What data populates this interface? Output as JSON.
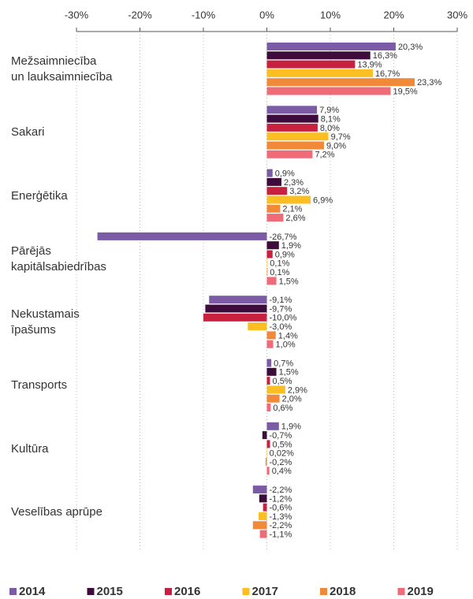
{
  "chart_data": {
    "type": "hbar",
    "categories": [
      "Mežsaimniecība\nun lauksaimniecība",
      "Sakari",
      "Enerģētika",
      "Pārējās\nkapitālsabiedrības",
      "Nekustamais\nīpašums",
      "Transports",
      "Kultūra",
      "Veselības aprūpe"
    ],
    "series": [
      {
        "name": "2014",
        "color": "#7b5aa6",
        "values": [
          20.3,
          7.9,
          0.9,
          -26.7,
          -9.1,
          0.7,
          1.9,
          -2.2
        ],
        "value_labels": [
          "20,3%",
          "7,9%",
          "0,9%",
          "-26,7%",
          "-9,1%",
          "0,7%",
          "1,9%",
          "-2,2%"
        ]
      },
      {
        "name": "2015",
        "color": "#3d0c3a",
        "values": [
          16.3,
          8.1,
          2.3,
          1.9,
          -9.7,
          1.5,
          -0.7,
          -1.2
        ],
        "value_labels": [
          "16,3%",
          "8,1%",
          "2,3%",
          "1,9%",
          "-9,7%",
          "1,5%",
          "-0,7%",
          "-1,2%"
        ]
      },
      {
        "name": "2016",
        "color": "#c8203f",
        "values": [
          13.9,
          8.0,
          3.2,
          0.9,
          -10.0,
          0.5,
          0.5,
          -0.6
        ],
        "value_labels": [
          "13,9%",
          "8,0%",
          "3,2%",
          "0,9%",
          "-10,0%",
          "0,5%",
          "0,5%",
          "-0,6%"
        ]
      },
      {
        "name": "2017",
        "color": "#fbbf24",
        "values": [
          16.7,
          9.7,
          6.9,
          0.1,
          -3.0,
          2.9,
          0.02,
          -1.3
        ],
        "value_labels": [
          "16,7%",
          "9,7%",
          "6,9%",
          "0,1%",
          "-3,0%",
          "2,9%",
          "0,02%",
          "-1,3%"
        ]
      },
      {
        "name": "2018",
        "color": "#f08a3a",
        "values": [
          23.3,
          9.0,
          2.1,
          0.1,
          1.4,
          2.0,
          -0.2,
          -2.2
        ],
        "value_labels": [
          "23,3%",
          "9,0%",
          "2,1%",
          "0,1%",
          "1,4%",
          "2,0%",
          "-0,2%",
          "-2,2%"
        ]
      },
      {
        "name": "2019",
        "color": "#ef6b78",
        "values": [
          19.5,
          7.2,
          2.6,
          1.5,
          1.0,
          0.6,
          0.4,
          -1.1
        ],
        "value_labels": [
          "19,5%",
          "7,2%",
          "2,6%",
          "1,5%",
          "1,0%",
          "0,6%",
          "0,4%",
          "-1,1%"
        ]
      }
    ],
    "xlim": [
      -30,
      30
    ],
    "xticks": [
      {
        "value": -30,
        "label": "-30%"
      },
      {
        "value": -20,
        "label": "-20%"
      },
      {
        "value": -10,
        "label": "-10%"
      },
      {
        "value": 0,
        "label": "0%"
      },
      {
        "value": 10,
        "label": "10%"
      },
      {
        "value": 20,
        "label": "20%"
      },
      {
        "value": 30,
        "label": "30%"
      }
    ],
    "grid": true,
    "legend": "bottom"
  }
}
